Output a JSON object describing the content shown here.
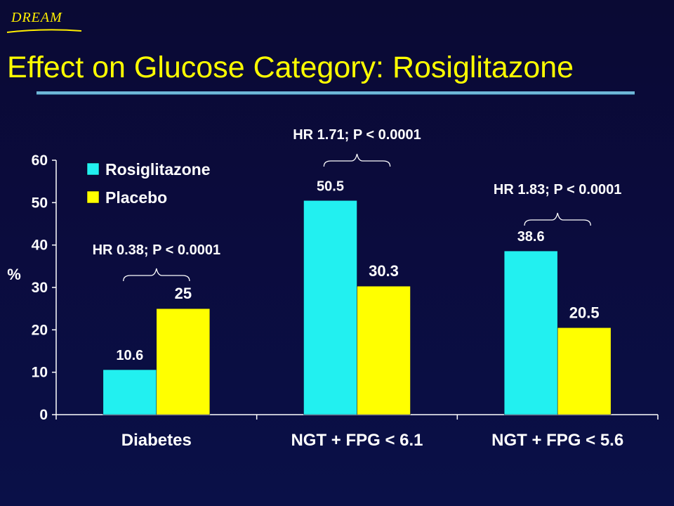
{
  "header": {
    "brand": "DREAM",
    "title": "Effect on Glucose Category: Rosiglitazone"
  },
  "colors": {
    "rosiglitazone": "#22f0f0",
    "placebo": "#ffff00",
    "title": "#ffff00",
    "background": "#0b0b3c"
  },
  "chart_data": {
    "type": "bar",
    "categories": [
      "Diabetes",
      "NGT + FPG < 6.1",
      "NGT + FPG < 5.6"
    ],
    "series": [
      {
        "name": "Rosiglitazone",
        "values": [
          10.6,
          50.5,
          38.6
        ]
      },
      {
        "name": "Placebo",
        "values": [
          25,
          30.3,
          20.5
        ]
      }
    ],
    "data_labels": [
      [
        "10.6",
        "50.5",
        "38.6"
      ],
      [
        "25",
        "30.3",
        "20.5"
      ]
    ],
    "ylabel": "%",
    "ylim": [
      0,
      60
    ],
    "yticks": [
      "0",
      "10",
      "20",
      "30",
      "40",
      "50",
      "60"
    ],
    "grid": false,
    "legend": "top-left",
    "annotations": [
      {
        "category": 0,
        "text": "HR 0.38; P < 0.0001"
      },
      {
        "category": 1,
        "text": "HR 1.71; P < 0.0001"
      },
      {
        "category": 2,
        "text": "HR 1.83; P < 0.0001"
      }
    ]
  }
}
